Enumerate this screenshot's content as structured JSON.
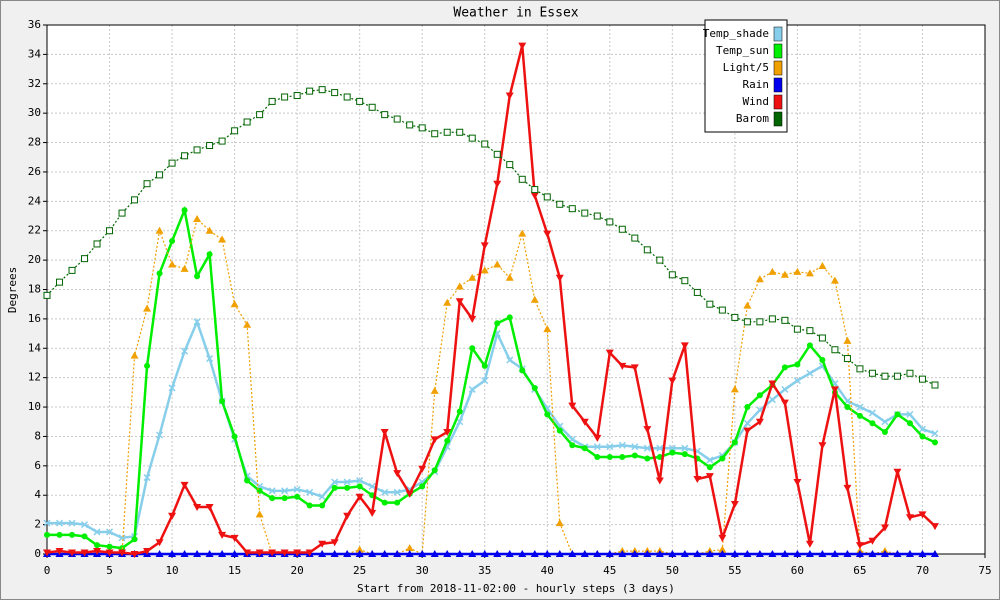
{
  "chart_data": {
    "type": "line",
    "title": "Weather in Essex",
    "x_label": "Start from 2018-11-02:00 - hourly steps (3 days)",
    "y_label": "Degrees",
    "x": [
      0,
      1,
      2,
      3,
      4,
      5,
      6,
      7,
      8,
      9,
      10,
      11,
      12,
      13,
      14,
      15,
      16,
      17,
      18,
      19,
      20,
      21,
      22,
      23,
      24,
      25,
      26,
      27,
      28,
      29,
      30,
      31,
      32,
      33,
      34,
      35,
      36,
      37,
      38,
      39,
      40,
      41,
      42,
      43,
      44,
      45,
      46,
      47,
      48,
      49,
      50,
      51,
      52,
      53,
      54,
      55,
      56,
      57,
      58,
      59,
      60,
      61,
      62,
      63,
      64,
      65,
      66,
      67,
      68,
      69,
      70,
      71
    ],
    "xlim": [
      0,
      75
    ],
    "xticks": [
      0,
      5,
      10,
      15,
      20,
      25,
      30,
      35,
      40,
      45,
      50,
      55,
      60,
      65,
      70,
      75
    ],
    "ylim": [
      0,
      36
    ],
    "yticks": [
      0,
      2,
      4,
      6,
      8,
      10,
      12,
      14,
      16,
      18,
      20,
      22,
      24,
      26,
      28,
      30,
      32,
      34,
      36
    ],
    "grid": true,
    "legend": "upper right",
    "series": [
      {
        "name": "Temp_shade",
        "color": "#87ceeb",
        "marker": "x",
        "values": [
          2.1,
          2.1,
          2.1,
          2.0,
          1.5,
          1.5,
          1.1,
          1.2,
          5.2,
          8.1,
          11.3,
          13.8,
          15.8,
          13.3,
          10.4,
          7.8,
          5.3,
          4.6,
          4.3,
          4.3,
          4.4,
          4.2,
          3.9,
          4.9,
          4.9,
          5.0,
          4.6,
          4.2,
          4.2,
          4.4,
          4.9,
          5.6,
          7.3,
          9.0,
          11.2,
          11.8,
          15.0,
          13.2,
          12.6,
          11.2,
          9.9,
          8.7,
          7.8,
          7.3,
          7.3,
          7.3,
          7.4,
          7.3,
          7.2,
          7.2,
          7.2,
          7.2,
          7.0,
          6.4,
          6.7,
          7.6,
          8.9,
          9.8,
          10.5,
          11.2,
          11.8,
          12.3,
          12.8,
          11.6,
          10.4,
          10.0,
          9.6,
          9.0,
          9.5,
          9.5,
          8.5,
          8.2
        ]
      },
      {
        "name": "Temp_sun",
        "color": "#00ee00",
        "marker": "circle",
        "values": [
          1.3,
          1.3,
          1.3,
          1.2,
          0.6,
          0.5,
          0.4,
          1.0,
          12.8,
          19.1,
          21.3,
          23.4,
          18.9,
          20.4,
          10.4,
          8.0,
          5.0,
          4.3,
          3.8,
          3.8,
          3.9,
          3.3,
          3.3,
          4.5,
          4.5,
          4.6,
          4.0,
          3.5,
          3.5,
          4.1,
          4.6,
          5.7,
          7.7,
          9.7,
          14.0,
          12.8,
          15.7,
          16.1,
          12.5,
          11.3,
          9.5,
          8.4,
          7.4,
          7.2,
          6.6,
          6.6,
          6.6,
          6.7,
          6.5,
          6.6,
          6.9,
          6.8,
          6.5,
          5.9,
          6.5,
          7.6,
          10.0,
          10.8,
          11.5,
          12.7,
          12.9,
          14.2,
          13.2,
          11.0,
          10.0,
          9.4,
          8.9,
          8.3,
          9.5,
          8.9,
          8.0,
          7.6
        ]
      },
      {
        "name": "Light/5",
        "color": "#f0a000",
        "marker": "tri-up",
        "values": [
          0,
          0,
          0,
          0,
          0,
          0,
          0,
          13.5,
          16.7,
          22.0,
          19.7,
          19.4,
          22.8,
          22.0,
          21.4,
          17.0,
          15.6,
          2.7,
          0,
          0,
          0,
          0,
          0,
          0,
          0,
          0.3,
          0,
          0,
          0,
          0.4,
          0,
          11.1,
          17.1,
          18.2,
          18.8,
          19.3,
          19.7,
          18.8,
          21.8,
          17.3,
          15.3,
          2.1,
          0,
          0,
          0,
          0,
          0.2,
          0.2,
          0.2,
          0.2,
          0,
          0,
          0,
          0.2,
          0.3,
          11.2,
          16.9,
          18.7,
          19.2,
          19.0,
          19.2,
          19.1,
          19.6,
          18.6,
          14.5,
          0.2,
          0,
          0.2,
          0,
          0,
          0,
          0
        ]
      },
      {
        "name": "Rain",
        "color": "#0000ee",
        "marker": "tri-up",
        "values": [
          0,
          0,
          0,
          0,
          0,
          0,
          0,
          0,
          0,
          0,
          0,
          0,
          0,
          0,
          0,
          0,
          0,
          0,
          0,
          0,
          0,
          0,
          0,
          0,
          0,
          0,
          0,
          0,
          0,
          0,
          0,
          0,
          0,
          0,
          0,
          0,
          0,
          0,
          0,
          0,
          0,
          0,
          0,
          0,
          0,
          0,
          0,
          0,
          0,
          0,
          0,
          0,
          0,
          0,
          0,
          0,
          0,
          0,
          0,
          0,
          0,
          0,
          0,
          0,
          0,
          0,
          0,
          0,
          0,
          0,
          0,
          0
        ]
      },
      {
        "name": "Wind",
        "color": "#ee1111",
        "marker": "tri-down",
        "values": [
          0.1,
          0.2,
          0.1,
          0.1,
          0.2,
          0.1,
          0.1,
          0.0,
          0.2,
          0.8,
          2.6,
          4.7,
          3.2,
          3.2,
          1.3,
          1.1,
          0.1,
          0.1,
          0.1,
          0.1,
          0.1,
          0.1,
          0.7,
          0.8,
          2.6,
          3.9,
          2.8,
          8.3,
          5.5,
          4.1,
          5.8,
          7.8,
          8.3,
          17.2,
          16.0,
          21.0,
          25.2,
          31.2,
          34.6,
          24.4,
          21.8,
          18.8,
          10.1,
          9.0,
          7.9,
          13.7,
          12.8,
          12.7,
          8.5,
          5.0,
          11.8,
          14.2,
          5.1,
          5.3,
          1.1,
          3.4,
          8.4,
          9.0,
          11.6,
          10.3,
          4.9,
          0.7,
          7.4,
          11.2,
          4.5,
          0.6,
          0.9,
          1.8,
          5.6,
          2.5,
          2.7,
          1.9
        ]
      },
      {
        "name": "Barom",
        "color": "#006400",
        "marker": "square",
        "values": [
          17.6,
          18.5,
          19.3,
          20.1,
          21.1,
          22.0,
          23.2,
          24.1,
          25.2,
          25.8,
          26.6,
          27.1,
          27.5,
          27.8,
          28.1,
          28.8,
          29.4,
          29.9,
          30.8,
          31.1,
          31.2,
          31.5,
          31.6,
          31.4,
          31.1,
          30.8,
          30.4,
          29.9,
          29.6,
          29.2,
          29.0,
          28.6,
          28.7,
          28.7,
          28.3,
          27.9,
          27.2,
          26.5,
          25.5,
          24.8,
          24.3,
          23.8,
          23.5,
          23.2,
          23.0,
          22.6,
          22.1,
          21.5,
          20.7,
          20.0,
          19.0,
          18.6,
          17.8,
          17.0,
          16.6,
          16.1,
          15.8,
          15.8,
          16.0,
          15.9,
          15.3,
          15.2,
          14.7,
          13.9,
          13.3,
          12.6,
          12.3,
          12.1,
          12.1,
          12.3,
          11.9,
          11.5
        ]
      }
    ]
  }
}
